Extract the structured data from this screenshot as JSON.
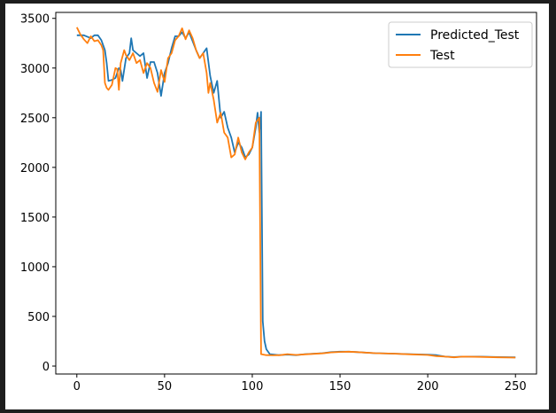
{
  "chart_data": {
    "type": "line",
    "title": "",
    "xlabel": "",
    "ylabel": "",
    "xlim": [
      -12,
      262
    ],
    "ylim": [
      -80,
      3560
    ],
    "xticks": [
      0,
      50,
      100,
      150,
      200,
      250
    ],
    "yticks": [
      0,
      500,
      1000,
      1500,
      2000,
      2500,
      3000,
      3500
    ],
    "grid": false,
    "legend_position": "top-right",
    "series": [
      {
        "name": "Predicted_Test",
        "color": "#1f77b4",
        "points": [
          [
            0,
            3330
          ],
          [
            4,
            3330
          ],
          [
            8,
            3300
          ],
          [
            10,
            3330
          ],
          [
            12,
            3330
          ],
          [
            14,
            3280
          ],
          [
            16,
            3180
          ],
          [
            17,
            3050
          ],
          [
            18,
            2870
          ],
          [
            20,
            2880
          ],
          [
            22,
            2900
          ],
          [
            24,
            3000
          ],
          [
            25,
            2980
          ],
          [
            26,
            2870
          ],
          [
            28,
            3100
          ],
          [
            30,
            3150
          ],
          [
            31,
            3300
          ],
          [
            32,
            3180
          ],
          [
            34,
            3150
          ],
          [
            36,
            3120
          ],
          [
            38,
            3150
          ],
          [
            40,
            2900
          ],
          [
            42,
            3060
          ],
          [
            44,
            3060
          ],
          [
            46,
            2950
          ],
          [
            48,
            2720
          ],
          [
            50,
            2950
          ],
          [
            52,
            3050
          ],
          [
            54,
            3200
          ],
          [
            56,
            3320
          ],
          [
            58,
            3320
          ],
          [
            60,
            3360
          ],
          [
            62,
            3300
          ],
          [
            64,
            3360
          ],
          [
            66,
            3270
          ],
          [
            68,
            3180
          ],
          [
            70,
            3100
          ],
          [
            72,
            3150
          ],
          [
            74,
            3200
          ],
          [
            76,
            2920
          ],
          [
            78,
            2750
          ],
          [
            80,
            2870
          ],
          [
            82,
            2500
          ],
          [
            84,
            2560
          ],
          [
            86,
            2400
          ],
          [
            88,
            2300
          ],
          [
            90,
            2150
          ],
          [
            92,
            2250
          ],
          [
            94,
            2200
          ],
          [
            96,
            2100
          ],
          [
            98,
            2130
          ],
          [
            100,
            2200
          ],
          [
            102,
            2400
          ],
          [
            103,
            2550
          ],
          [
            104,
            2350
          ],
          [
            105,
            2560
          ],
          [
            106,
            450
          ],
          [
            107,
            250
          ],
          [
            108,
            170
          ],
          [
            110,
            120
          ],
          [
            115,
            110
          ],
          [
            120,
            115
          ],
          [
            125,
            110
          ],
          [
            130,
            120
          ],
          [
            140,
            130
          ],
          [
            145,
            140
          ],
          [
            150,
            145
          ],
          [
            155,
            145
          ],
          [
            160,
            140
          ],
          [
            170,
            130
          ],
          [
            180,
            125
          ],
          [
            190,
            120
          ],
          [
            200,
            115
          ],
          [
            205,
            110
          ],
          [
            210,
            95
          ],
          [
            215,
            90
          ],
          [
            220,
            95
          ],
          [
            230,
            95
          ],
          [
            240,
            90
          ],
          [
            250,
            88
          ]
        ]
      },
      {
        "name": "Test",
        "color": "#ff7f0e",
        "points": [
          [
            0,
            3410
          ],
          [
            2,
            3340
          ],
          [
            4,
            3290
          ],
          [
            6,
            3250
          ],
          [
            8,
            3320
          ],
          [
            10,
            3270
          ],
          [
            12,
            3280
          ],
          [
            14,
            3230
          ],
          [
            15,
            3180
          ],
          [
            16,
            2850
          ],
          [
            17,
            2800
          ],
          [
            18,
            2780
          ],
          [
            20,
            2830
          ],
          [
            22,
            3000
          ],
          [
            23,
            2990
          ],
          [
            24,
            2780
          ],
          [
            25,
            3050
          ],
          [
            27,
            3180
          ],
          [
            28,
            3130
          ],
          [
            30,
            3080
          ],
          [
            32,
            3150
          ],
          [
            34,
            3050
          ],
          [
            36,
            3080
          ],
          [
            38,
            2950
          ],
          [
            40,
            3050
          ],
          [
            42,
            3000
          ],
          [
            44,
            2850
          ],
          [
            46,
            2760
          ],
          [
            48,
            2980
          ],
          [
            50,
            2860
          ],
          [
            52,
            3100
          ],
          [
            54,
            3150
          ],
          [
            56,
            3280
          ],
          [
            58,
            3320
          ],
          [
            60,
            3400
          ],
          [
            62,
            3290
          ],
          [
            64,
            3380
          ],
          [
            66,
            3300
          ],
          [
            68,
            3180
          ],
          [
            70,
            3100
          ],
          [
            72,
            3150
          ],
          [
            74,
            2950
          ],
          [
            75,
            2750
          ],
          [
            76,
            2850
          ],
          [
            78,
            2680
          ],
          [
            80,
            2450
          ],
          [
            82,
            2550
          ],
          [
            84,
            2350
          ],
          [
            86,
            2300
          ],
          [
            88,
            2100
          ],
          [
            90,
            2130
          ],
          [
            92,
            2300
          ],
          [
            94,
            2150
          ],
          [
            96,
            2080
          ],
          [
            98,
            2150
          ],
          [
            100,
            2200
          ],
          [
            102,
            2450
          ],
          [
            104,
            2500
          ],
          [
            105,
            120
          ],
          [
            108,
            110
          ],
          [
            112,
            108
          ],
          [
            116,
            110
          ],
          [
            120,
            120
          ],
          [
            125,
            112
          ],
          [
            130,
            118
          ],
          [
            140,
            128
          ],
          [
            145,
            138
          ],
          [
            150,
            142
          ],
          [
            155,
            145
          ],
          [
            160,
            140
          ],
          [
            170,
            130
          ],
          [
            180,
            125
          ],
          [
            190,
            118
          ],
          [
            200,
            112
          ],
          [
            205,
            100
          ],
          [
            210,
            95
          ],
          [
            215,
            88
          ],
          [
            220,
            95
          ],
          [
            230,
            92
          ],
          [
            240,
            88
          ],
          [
            250,
            85
          ]
        ]
      }
    ]
  }
}
